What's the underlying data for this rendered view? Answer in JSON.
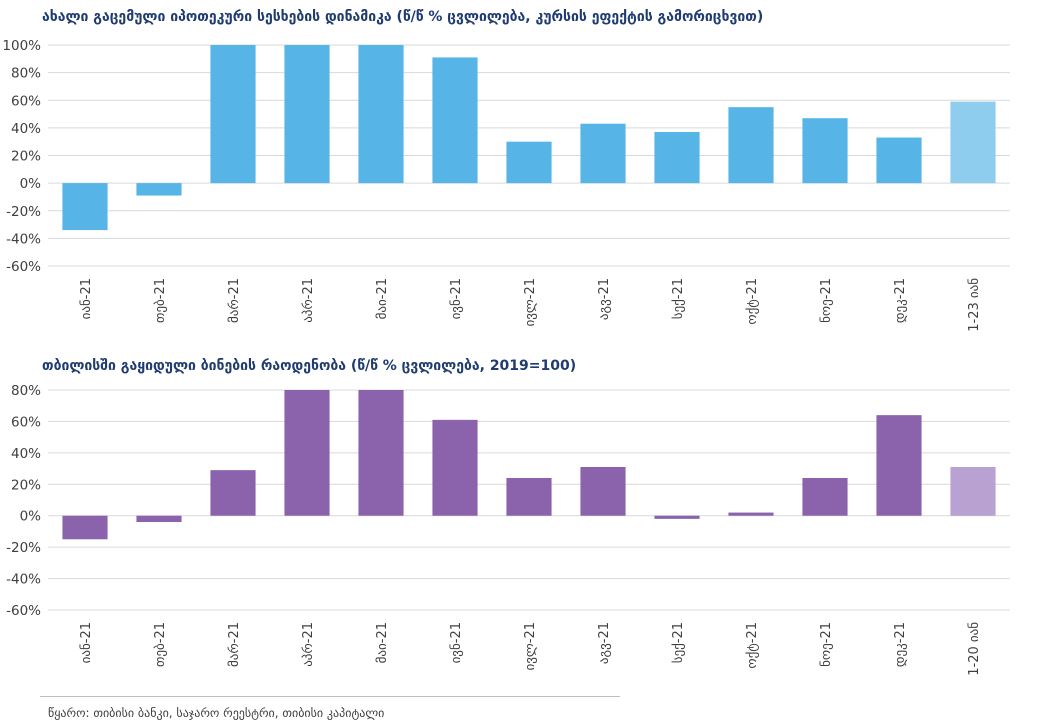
{
  "chart_data": [
    {
      "type": "bar",
      "title": "ახალი გაცემული იპოთეკური სესხების დინამიკა (წ/წ % ცვლილება, კურსის ეფექტის გამორიცხვით)",
      "categories": [
        "იან-21",
        "თებ-21",
        "მარ-21",
        "აპრ-21",
        "მაი-21",
        "ივნ-21",
        "ივლ-21",
        "აგვ-21",
        "სექ-21",
        "ოქტ-21",
        "ნოე-21",
        "დეკ-21",
        "1-23 იან"
      ],
      "values": [
        -34,
        -9,
        100,
        100,
        100,
        91,
        30,
        43,
        37,
        55,
        47,
        33,
        59
      ],
      "yticks": [
        "100%",
        "80%",
        "60%",
        "40%",
        "20%",
        "0%",
        "-20%",
        "-40%",
        "-60%"
      ],
      "ylim": [
        -60,
        100
      ],
      "colors": {
        "bar": "#56b4e6",
        "highlight": "#8ecdee"
      },
      "highlight_last": true,
      "grid": true
    },
    {
      "type": "bar",
      "title": "თბილისში გაყიდული ბინების რაოდენობა (წ/წ % ცვლილება, 2019=100)",
      "categories": [
        "იან-21",
        "თებ-21",
        "მარ-21",
        "აპრ-21",
        "მაი-21",
        "ივნ-21",
        "ივლ-21",
        "აგვ-21",
        "სექ-21",
        "ოქტ-21",
        "ნოე-21",
        "დეკ-21",
        "1-20 იან"
      ],
      "values": [
        -15,
        -4,
        29,
        80,
        80,
        61,
        24,
        31,
        -2,
        2,
        24,
        64,
        31
      ],
      "yticks": [
        "80%",
        "60%",
        "40%",
        "20%",
        "0%",
        "-20%",
        "-40%",
        "-60%"
      ],
      "ylim": [
        -60,
        80
      ],
      "colors": {
        "bar": "#8b63ac",
        "highlight": "#b9a1d2"
      },
      "highlight_last": true,
      "grid": true
    }
  ],
  "source": "წყარო: თიბისი ბანკი, საჯარო რეესტრი, თიბისი კაპიტალი"
}
